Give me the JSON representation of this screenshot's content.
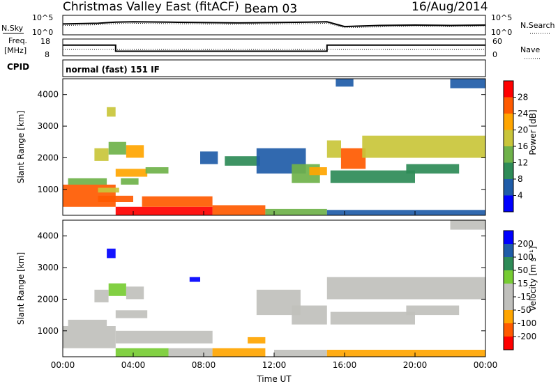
{
  "header": {
    "title": "Christmas Valley East (fitACF)",
    "beam": "Beam 03",
    "date": "16/Aug/2014"
  },
  "strips": {
    "nsky_label": "N.Sky",
    "nsearch_label": "N.Search",
    "noise_ticks": [
      "10^5",
      "10^0"
    ],
    "freq_label_1": "Freq.",
    "freq_label_2": "[MHz]",
    "freq_ticks": [
      "18",
      "8"
    ],
    "nave_label": "Nave",
    "nave_ticks": [
      "60",
      "0"
    ],
    "cpid_label": "CPID",
    "cpid_value": "normal (fast) 151 IF"
  },
  "colors": {
    "power_scale": [
      "#0000ff",
      "#1f5ca8",
      "#2e8b57",
      "#6fb24a",
      "#c9c53a",
      "#ffa500",
      "#ff5a00",
      "#ff0000"
    ],
    "velocity_scale": [
      "#ff0000",
      "#ff5a00",
      "#ffa500",
      "#c0c0bc",
      "#c0c0bc",
      "#77cc33",
      "#2e8b57",
      "#1f5ca8",
      "#0000ff"
    ]
  },
  "chart_data": [
    {
      "type": "line",
      "panel": "noise",
      "x": [
        "00:00",
        "02:00",
        "03:00",
        "04:00",
        "06:00",
        "08:00",
        "10:00",
        "12:00",
        "14:00",
        "15:00",
        "16:00",
        "18:00",
        "20:00",
        "22:00",
        "24:00"
      ],
      "series": [
        {
          "name": "N.Sky",
          "values": [
            2.8,
            3.0,
            3.3,
            3.4,
            3.3,
            3.2,
            3.1,
            3.2,
            3.3,
            3.4,
            2.1,
            2.4,
            2.5,
            2.4,
            2.5
          ]
        },
        {
          "name": "N.Search",
          "values": [
            2.4,
            2.6,
            2.9,
            3.0,
            2.9,
            2.8,
            2.7,
            2.8,
            2.9,
            3.0,
            1.8,
            2.0,
            2.2,
            2.1,
            2.2
          ]
        }
      ],
      "ylim": [
        0,
        5
      ],
      "yticks": [
        "10^0",
        "10^5"
      ]
    },
    {
      "type": "line",
      "panel": "frequency",
      "x": [
        "00:00",
        "03:00",
        "03:00",
        "15:00",
        "15:00",
        "24:00"
      ],
      "series": [
        {
          "name": "Freq.",
          "values": [
            14.5,
            14.5,
            10.5,
            10.5,
            14.5,
            14.5
          ]
        },
        {
          "name": "Nave",
          "values": [
            22,
            22,
            22,
            22,
            22,
            22
          ]
        }
      ],
      "ylim": [
        8,
        18
      ],
      "yticks": [
        "8",
        "18"
      ],
      "y2ticks": [
        "0",
        "60"
      ]
    },
    {
      "type": "heatmap",
      "panel": "power",
      "ylabel": "Slant Range [km]",
      "xlim": [
        0,
        24
      ],
      "ylim": [
        180,
        4500
      ],
      "yticks": [
        "1000",
        "2000",
        "3000",
        "4000"
      ],
      "colorbar_label": "Power [dB]",
      "colorbar_ticks": [
        "4",
        "8",
        "12",
        "16",
        "20",
        "24",
        "28"
      ],
      "colorbar_range": [
        0,
        32
      ],
      "regions": [
        {
          "t0": 0.0,
          "t1": 3.0,
          "r0": 450,
          "r1": 1150,
          "level": 27
        },
        {
          "t0": 0.3,
          "t1": 2.5,
          "r0": 1150,
          "r1": 1350,
          "level": 13
        },
        {
          "t0": 2.0,
          "t1": 3.2,
          "r0": 900,
          "r1": 1050,
          "level": 18
        },
        {
          "t0": 1.8,
          "t1": 2.6,
          "r0": 1900,
          "r1": 2300,
          "level": 19
        },
        {
          "t0": 2.6,
          "t1": 3.6,
          "r0": 2100,
          "r1": 2500,
          "level": 15
        },
        {
          "t0": 3.6,
          "t1": 4.6,
          "r0": 2000,
          "r1": 2400,
          "level": 21
        },
        {
          "t0": 2.5,
          "t1": 3.0,
          "r0": 3300,
          "r1": 3600,
          "level": 16
        },
        {
          "t0": 3.0,
          "t1": 4.8,
          "r0": 1400,
          "r1": 1650,
          "level": 21
        },
        {
          "t0": 3.3,
          "t1": 4.3,
          "r0": 1150,
          "r1": 1350,
          "level": 15
        },
        {
          "t0": 4.7,
          "t1": 6.0,
          "r0": 1500,
          "r1": 1700,
          "level": 12
        },
        {
          "t0": 3.0,
          "t1": 8.5,
          "r0": 180,
          "r1": 450,
          "level": 28
        },
        {
          "t0": 4.5,
          "t1": 8.5,
          "r0": 450,
          "r1": 780,
          "level": 26
        },
        {
          "t0": 8.5,
          "t1": 11.5,
          "r0": 180,
          "r1": 500,
          "level": 24
        },
        {
          "t0": 11.5,
          "t1": 15.0,
          "r0": 180,
          "r1": 380,
          "level": 14
        },
        {
          "t0": 2.0,
          "t1": 4.0,
          "r0": 600,
          "r1": 800,
          "level": 24
        },
        {
          "t0": 7.8,
          "t1": 8.8,
          "r0": 1800,
          "r1": 2200,
          "level": 6
        },
        {
          "t0": 9.2,
          "t1": 11.2,
          "r0": 1750,
          "r1": 2050,
          "level": 9
        },
        {
          "t0": 11.0,
          "t1": 13.8,
          "r0": 1500,
          "r1": 2300,
          "level": 6
        },
        {
          "t0": 13.0,
          "t1": 14.6,
          "r0": 1200,
          "r1": 1800,
          "level": 12
        },
        {
          "t0": 14.0,
          "t1": 15.0,
          "r0": 1450,
          "r1": 1700,
          "level": 22
        },
        {
          "t0": 15.0,
          "t1": 15.8,
          "r0": 2000,
          "r1": 2550,
          "level": 19
        },
        {
          "t0": 15.8,
          "t1": 17.2,
          "r0": 1650,
          "r1": 2300,
          "level": 26
        },
        {
          "t0": 15.2,
          "t1": 20.0,
          "r0": 1200,
          "r1": 1600,
          "level": 8
        },
        {
          "t0": 17.0,
          "t1": 24.0,
          "r0": 2000,
          "r1": 2700,
          "level": 18
        },
        {
          "t0": 19.5,
          "t1": 22.5,
          "r0": 1500,
          "r1": 1800,
          "level": 9
        },
        {
          "t0": 15.0,
          "t1": 24.0,
          "r0": 180,
          "r1": 350,
          "level": 4
        },
        {
          "t0": 22.0,
          "t1": 24.0,
          "r0": 4200,
          "r1": 4500,
          "level": 5
        },
        {
          "t0": 15.5,
          "t1": 16.5,
          "r0": 4250,
          "r1": 4500,
          "level": 4
        }
      ]
    },
    {
      "type": "heatmap",
      "panel": "velocity",
      "xlabel": "Time UT",
      "ylabel": "Slant Range [km]",
      "xlim": [
        0,
        24
      ],
      "ylim": [
        180,
        4500
      ],
      "xticks": [
        "00:00",
        "04:00",
        "08:00",
        "12:00",
        "16:00",
        "20:00",
        "00:00"
      ],
      "yticks": [
        "1000",
        "2000",
        "3000",
        "4000"
      ],
      "colorbar_label": "Velocity [m s⁻¹]",
      "colorbar_ticks": [
        "-200",
        "-100",
        "-50",
        "-15",
        "15",
        "50",
        "100",
        "200"
      ],
      "colorbar_range": [
        -250,
        250
      ],
      "regions": [
        {
          "t0": 0.0,
          "t1": 3.0,
          "r0": 450,
          "r1": 1150,
          "level": 0
        },
        {
          "t0": 0.3,
          "t1": 2.5,
          "r0": 1150,
          "r1": 1350,
          "level": 0
        },
        {
          "t0": 1.8,
          "t1": 2.6,
          "r0": 1900,
          "r1": 2300,
          "level": 0
        },
        {
          "t0": 2.6,
          "t1": 3.6,
          "r0": 2100,
          "r1": 2500,
          "level": 40
        },
        {
          "t0": 3.6,
          "t1": 4.6,
          "r0": 2000,
          "r1": 2400,
          "level": 0
        },
        {
          "t0": 2.5,
          "t1": 3.0,
          "r0": 3300,
          "r1": 3600,
          "level": 220
        },
        {
          "t0": 3.0,
          "t1": 4.8,
          "r0": 1400,
          "r1": 1650,
          "level": 0
        },
        {
          "t0": 3.0,
          "t1": 8.5,
          "r0": 600,
          "r1": 1000,
          "level": 0
        },
        {
          "t0": 3.0,
          "t1": 6.0,
          "r0": 180,
          "r1": 450,
          "level": 40
        },
        {
          "t0": 6.0,
          "t1": 8.5,
          "r0": 180,
          "r1": 450,
          "level": -40
        },
        {
          "t0": 8.5,
          "t1": 11.5,
          "r0": 180,
          "r1": 450,
          "level": -60
        },
        {
          "t0": 10.5,
          "t1": 11.5,
          "r0": 600,
          "r1": 800,
          "level": -60
        },
        {
          "t0": 11.0,
          "t1": 13.5,
          "r0": 1500,
          "r1": 2300,
          "level": 0
        },
        {
          "t0": 13.0,
          "t1": 15.0,
          "r0": 1200,
          "r1": 1800,
          "level": 0
        },
        {
          "t0": 12.0,
          "t1": 15.0,
          "r0": 180,
          "r1": 400,
          "level": -40
        },
        {
          "t0": 15.0,
          "t1": 24.0,
          "r0": 2000,
          "r1": 2700,
          "level": 0
        },
        {
          "t0": 15.2,
          "t1": 20.0,
          "r0": 1200,
          "r1": 1600,
          "level": 0
        },
        {
          "t0": 19.5,
          "t1": 22.5,
          "r0": 1500,
          "r1": 1800,
          "level": 0
        },
        {
          "t0": 15.0,
          "t1": 24.0,
          "r0": 180,
          "r1": 400,
          "level": -60
        },
        {
          "t0": 7.2,
          "t1": 7.8,
          "r0": 2550,
          "r1": 2700,
          "level": 220
        },
        {
          "t0": 22.0,
          "t1": 24.0,
          "r0": 4200,
          "r1": 4500,
          "level": 0
        }
      ]
    }
  ]
}
